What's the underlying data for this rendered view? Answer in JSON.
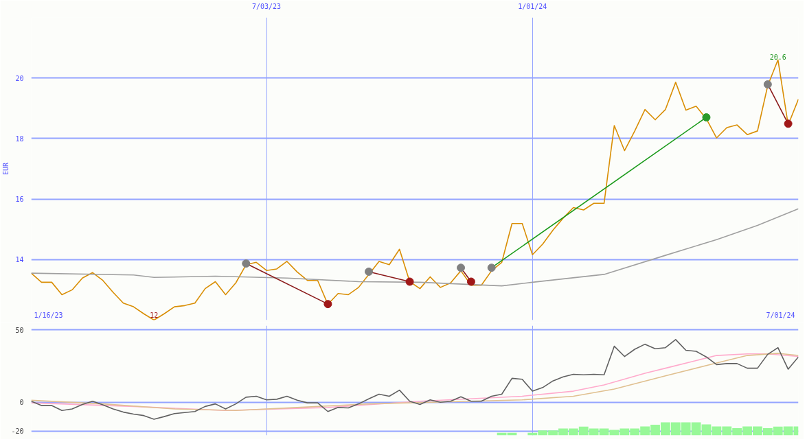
{
  "chart_data": [
    {
      "type": "line",
      "ylabel": "EUR",
      "x": [
        "2023-01-23",
        "2023-01-30",
        "2023-02-06",
        "2023-02-13",
        "2023-02-20",
        "2023-02-27",
        "2023-03-06",
        "2023-03-13",
        "2023-03-20",
        "2023-03-27",
        "2023-04-03",
        "2023-04-10",
        "2023-04-17",
        "2023-04-24",
        "2023-05-01",
        "2023-05-08",
        "2023-05-15",
        "2023-05-22",
        "2023-05-29",
        "2023-06-05",
        "2023-06-12",
        "2023-06-19",
        "2023-06-26",
        "2023-07-03",
        "2023-07-10",
        "2023-07-17",
        "2023-07-24",
        "2023-07-31",
        "2023-08-07",
        "2023-08-14",
        "2023-08-21",
        "2023-08-28",
        "2023-09-04",
        "2023-09-11",
        "2023-09-18",
        "2023-09-25",
        "2023-10-02",
        "2023-10-09",
        "2023-10-16",
        "2023-10-23",
        "2023-10-30",
        "2023-11-06",
        "2023-11-13",
        "2023-11-20",
        "2023-11-27",
        "2023-12-04",
        "2023-12-11",
        "2023-12-18",
        "2023-12-25",
        "2024-01-01",
        "2024-01-08",
        "2024-01-15",
        "2024-01-22",
        "2024-01-29",
        "2024-02-05",
        "2024-02-12",
        "2024-02-19",
        "2024-02-26",
        "2024-03-04",
        "2024-03-11",
        "2024-03-18",
        "2024-03-25",
        "2024-04-01",
        "2024-04-08",
        "2024-04-15",
        "2024-04-22",
        "2024-04-29",
        "2024-05-06",
        "2024-05-13",
        "2024-05-20",
        "2024-05-27",
        "2024-06-03",
        "2024-06-10",
        "2024-06-17",
        "2024-06-24",
        "2024-07-01"
      ],
      "series": [
        {
          "color": "#d98e04",
          "values": [
            13.55,
            13.25,
            13.25,
            12.84,
            13.0,
            13.39,
            13.57,
            13.31,
            12.92,
            12.56,
            12.44,
            12.21,
            12.0,
            12.21,
            12.44,
            12.48,
            12.56,
            13.04,
            13.27,
            12.84,
            13.23,
            13.83,
            13.91,
            13.64,
            13.69,
            13.94,
            13.59,
            13.31,
            13.31,
            12.52,
            12.88,
            12.84,
            13.08,
            13.51,
            13.94,
            13.83,
            14.34,
            13.27,
            13.04,
            13.43,
            13.08,
            13.23,
            13.63,
            13.15,
            13.15,
            13.63,
            13.91,
            15.19,
            15.19,
            14.16,
            14.51,
            14.97,
            15.37,
            15.72,
            15.64,
            15.86,
            15.86,
            18.43,
            17.6,
            18.25,
            18.96,
            18.62,
            18.96,
            19.86,
            18.94,
            19.07,
            18.65,
            18.02,
            18.36,
            18.45,
            18.13,
            18.25,
            19.75,
            20.6,
            18.45,
            19.3
          ]
        },
        {
          "color": "#a0a0a0",
          "x": [
            "2023-01-23",
            "2023-04-03",
            "2023-04-17",
            "2023-05-29",
            "2023-07-17",
            "2023-09-04",
            "2023-10-16",
            "2023-12-11",
            "2024-01-01",
            "2024-02-19",
            "2024-04-01",
            "2024-05-06",
            "2024-06-03",
            "2024-07-01"
          ],
          "values": [
            13.55,
            13.49,
            13.41,
            13.45,
            13.39,
            13.27,
            13.25,
            13.13,
            13.25,
            13.51,
            14.14,
            14.66,
            15.13,
            15.68
          ]
        },
        {
          "color": "#8b1a1a",
          "marker": "circle",
          "x": [
            "2023-06-19",
            "2023-08-14"
          ],
          "values": [
            13.87,
            12.53
          ],
          "colors": [
            "#808080",
            "#a01818"
          ]
        },
        {
          "color": "#8b1a1a",
          "marker": "circle",
          "x": [
            "2023-09-11",
            "2023-10-09"
          ],
          "values": [
            13.6,
            13.27
          ],
          "colors": [
            "#808080",
            "#a01818"
          ]
        },
        {
          "color": "#8b1a1a",
          "marker": "circle",
          "x": [
            "2023-11-13",
            "2023-11-20"
          ],
          "values": [
            13.73,
            13.27
          ],
          "colors": [
            "#808080",
            "#a01818"
          ]
        },
        {
          "color": "#1a9a1a",
          "marker": "circle",
          "x": [
            "2023-12-04",
            "2024-04-29"
          ],
          "values": [
            13.73,
            18.7
          ],
          "colors": [
            "#808080",
            "#2a9a2a"
          ]
        },
        {
          "color": "#8b1a1a",
          "marker": "circle",
          "x": [
            "2024-06-10",
            "2024-06-24"
          ],
          "values": [
            19.79,
            18.49
          ],
          "colors": [
            "#808080",
            "#a01818"
          ]
        }
      ],
      "xlim": [
        "2023-01-23",
        "2024-07-01"
      ],
      "xticks": [
        {
          "value": "2023-07-03",
          "label": "7/03/23"
        },
        {
          "value": "2024-01-01",
          "label": "1/01/24"
        }
      ],
      "ylim": [
        12,
        22
      ],
      "yticks": [
        14,
        16,
        18,
        20
      ],
      "grid": true,
      "annotations": [
        {
          "text": "12",
          "x": "2023-04-17",
          "y": 12
        },
        {
          "text": "20.6",
          "x": "2024-06-17",
          "y": 20.6
        },
        "1/16/23",
        "7/01/24"
      ]
    },
    {
      "type": "line",
      "x": [
        "2023-01-23",
        "2023-01-30",
        "2023-02-06",
        "2023-02-13",
        "2023-02-20",
        "2023-02-27",
        "2023-03-06",
        "2023-03-13",
        "2023-03-20",
        "2023-03-27",
        "2023-04-03",
        "2023-04-10",
        "2023-04-17",
        "2023-04-24",
        "2023-05-01",
        "2023-05-08",
        "2023-05-15",
        "2023-05-22",
        "2023-05-29",
        "2023-06-05",
        "2023-06-12",
        "2023-06-19",
        "2023-06-26",
        "2023-07-03",
        "2023-07-10",
        "2023-07-17",
        "2023-07-24",
        "2023-07-31",
        "2023-08-07",
        "2023-08-14",
        "2023-08-21",
        "2023-08-28",
        "2023-09-04",
        "2023-09-11",
        "2023-09-18",
        "2023-09-25",
        "2023-10-02",
        "2023-10-09",
        "2023-10-16",
        "2023-10-23",
        "2023-10-30",
        "2023-11-06",
        "2023-11-13",
        "2023-11-20",
        "2023-11-27",
        "2023-12-04",
        "2023-12-11",
        "2023-12-18",
        "2023-12-25",
        "2024-01-01",
        "2024-01-08",
        "2024-01-15",
        "2024-01-22",
        "2024-01-29",
        "2024-02-05",
        "2024-02-12",
        "2024-02-19",
        "2024-02-26",
        "2024-03-04",
        "2024-03-11",
        "2024-03-18",
        "2024-03-25",
        "2024-04-01",
        "2024-04-08",
        "2024-04-15",
        "2024-04-22",
        "2024-04-29",
        "2024-05-06",
        "2024-05-13",
        "2024-05-20",
        "2024-05-27",
        "2024-06-03",
        "2024-06-10",
        "2024-06-17",
        "2024-06-24",
        "2024-07-01"
      ],
      "series": [
        {
          "type": "bar",
          "color": "#98f898",
          "x": [
            "2023-12-11",
            "2023-12-18",
            "2023-12-25",
            "2024-01-01",
            "2024-01-08",
            "2024-01-15",
            "2024-01-22",
            "2024-01-29",
            "2024-02-05",
            "2024-02-12",
            "2024-02-19",
            "2024-02-26",
            "2024-03-04",
            "2024-03-11",
            "2024-03-18",
            "2024-03-25",
            "2024-04-01",
            "2024-04-08",
            "2024-04-15",
            "2024-04-22",
            "2024-04-29",
            "2024-05-06",
            "2024-05-13",
            "2024-05-20",
            "2024-05-27",
            "2024-06-03",
            "2024-06-10",
            "2024-06-17",
            "2024-06-24",
            "2024-07-01"
          ],
          "base": [
            -23,
            -23,
            null,
            -23,
            -23,
            -23,
            -23,
            -23,
            -23,
            -23,
            -23,
            -23,
            -23,
            -23,
            -23,
            -23,
            -23,
            -23,
            -23,
            -23,
            -23,
            -23,
            -23,
            -23,
            -23,
            -23,
            -23,
            -23,
            -23,
            -23
          ],
          "values": [
            1.8,
            1.8,
            null,
            1.8,
            3.4,
            3.4,
            4.8,
            4.8,
            6.0,
            4.8,
            4.8,
            3.8,
            4.8,
            4.8,
            6.2,
            7.4,
            9.0,
            9.0,
            9.0,
            9.0,
            7.6,
            6.2,
            6.2,
            5.0,
            6.2,
            6.2,
            5.0,
            6.0,
            6.2,
            6.2
          ]
        },
        {
          "color": "#ffaacc",
          "x": [
            "2023-01-23",
            "2023-04-03",
            "2023-06-05",
            "2023-08-14",
            "2023-10-16",
            "2023-12-25",
            "2024-01-29",
            "2024-02-19",
            "2024-03-18",
            "2024-04-01",
            "2024-04-22",
            "2024-05-06",
            "2024-05-27",
            "2024-06-10",
            "2024-07-01"
          ],
          "values": [
            -0.5,
            -3.0,
            -5.8,
            -3.7,
            0.6,
            4.1,
            7.6,
            11.9,
            20.0,
            23.5,
            28.8,
            32.3,
            33.4,
            33.4,
            31.6
          ]
        },
        {
          "color": "#e0c090",
          "x": [
            "2023-01-23",
            "2023-03-13",
            "2023-05-01",
            "2023-06-12",
            "2023-07-24",
            "2023-09-11",
            "2023-11-20",
            "2023-12-25",
            "2024-01-29",
            "2024-02-26",
            "2024-04-01",
            "2024-05-06",
            "2024-05-27",
            "2024-06-17",
            "2024-07-01"
          ],
          "values": [
            1.3,
            -1.2,
            -4.7,
            -5.8,
            -3.7,
            -1.2,
            0.6,
            1.6,
            4.1,
            9.1,
            18.2,
            27.1,
            32.3,
            33.8,
            32.3
          ]
        },
        {
          "color": "#606060",
          "values": [
            0.6,
            -2.3,
            -2.3,
            -5.8,
            -4.7,
            -1.6,
            0.6,
            -1.9,
            -4.7,
            -6.9,
            -8.3,
            -9.3,
            -11.8,
            -10.0,
            -7.9,
            -7.2,
            -6.5,
            -3.0,
            -1.2,
            -4.7,
            -1.2,
            3.4,
            4.1,
            1.6,
            2.0,
            4.1,
            1.3,
            -0.5,
            -0.5,
            -6.5,
            -3.7,
            -4.0,
            -1.2,
            2.3,
            5.5,
            4.1,
            8.3,
            0.6,
            -1.6,
            1.6,
            -0.1,
            0.6,
            3.7,
            0.6,
            0.6,
            4.1,
            5.5,
            16.5,
            15.8,
            7.6,
            10.1,
            14.7,
            17.5,
            19.3,
            18.9,
            19.3,
            18.9,
            38.7,
            31.6,
            36.6,
            40.1,
            37.0,
            37.7,
            43.3,
            35.9,
            35.2,
            31.3,
            26.0,
            26.7,
            26.7,
            23.5,
            23.5,
            33.1,
            37.7,
            22.8,
            31.3
          ]
        }
      ],
      "xlim": [
        "2023-01-23",
        "2024-07-01"
      ],
      "xticks": [
        {
          "value": "2023-07-03",
          "label": null
        },
        {
          "value": "2024-01-01",
          "label": null
        }
      ],
      "ylim": [
        -23,
        53
      ],
      "yticks": [
        -20,
        0,
        50
      ],
      "grid": true,
      "tick_labels": "y"
    }
  ]
}
